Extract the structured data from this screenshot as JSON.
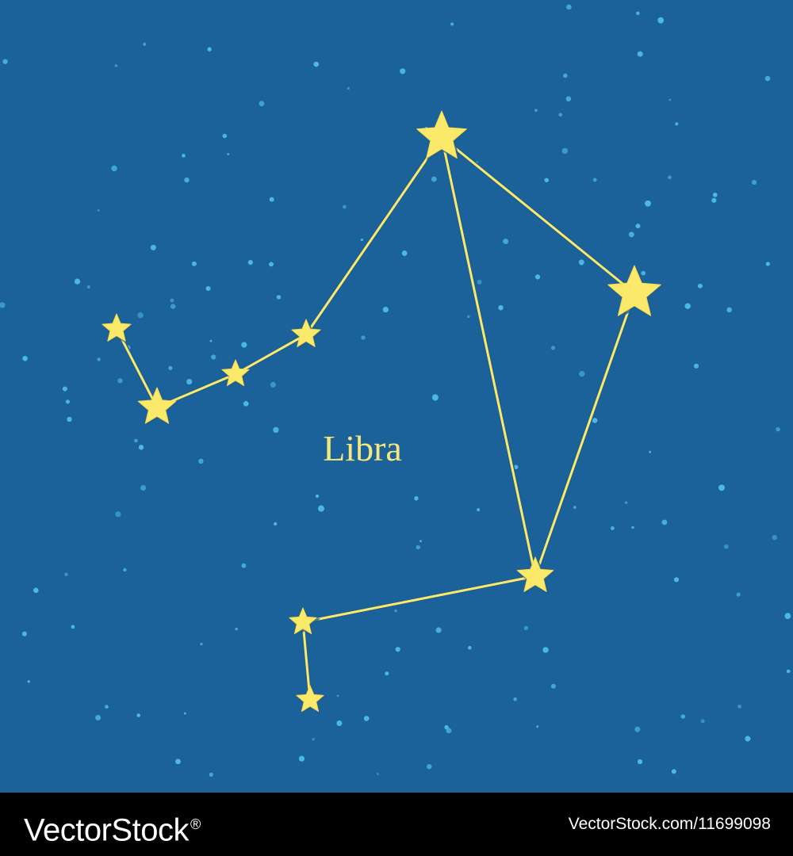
{
  "constellation": {
    "name": "Libra"
  },
  "footer": {
    "logo_text": "VectorStock",
    "logo_mark": "®",
    "credit": "VectorStock.com/11699098"
  },
  "colors": {
    "sky": "#1a6299",
    "background_dots": "#4ab8e6",
    "star_fill": "#fbe96a",
    "star_outline": "#1d5f93",
    "line": "#fbe96a",
    "label": "#f5e77a",
    "footer_bg": "#000000",
    "footer_text": "#ffffff"
  }
}
